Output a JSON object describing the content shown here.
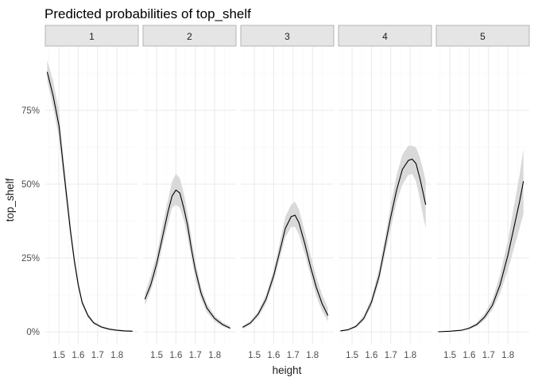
{
  "chart_data": {
    "type": "line",
    "title": "Predicted probabilities of top_shelf",
    "xlabel": "height",
    "ylabel": "top_shelf",
    "ylim": [
      0,
      0.93
    ],
    "y_ticks": [
      0,
      0.25,
      0.5,
      0.75
    ],
    "y_tick_labels": [
      "0%",
      "25%",
      "50%",
      "75%"
    ],
    "x_ticks": [
      1.5,
      1.6,
      1.7,
      1.8
    ],
    "x_tick_labels": [
      "1.5",
      "1.6",
      "1.7",
      "1.8"
    ],
    "xlim": [
      1.43,
      1.91
    ],
    "grid": true,
    "confidence_band": true,
    "panels": [
      {
        "strip": "1",
        "points": [
          {
            "x": 1.44,
            "y": 0.88,
            "lo": 0.85,
            "hi": 0.92
          },
          {
            "x": 1.47,
            "y": 0.8,
            "lo": 0.76,
            "hi": 0.85
          },
          {
            "x": 1.5,
            "y": 0.7,
            "lo": 0.66,
            "hi": 0.75
          },
          {
            "x": 1.52,
            "y": 0.58,
            "lo": 0.54,
            "hi": 0.62
          },
          {
            "x": 1.54,
            "y": 0.46,
            "lo": 0.43,
            "hi": 0.49
          },
          {
            "x": 1.56,
            "y": 0.34,
            "lo": 0.32,
            "hi": 0.37
          },
          {
            "x": 1.58,
            "y": 0.24,
            "lo": 0.22,
            "hi": 0.26
          },
          {
            "x": 1.6,
            "y": 0.16,
            "lo": 0.145,
            "hi": 0.175
          },
          {
            "x": 1.62,
            "y": 0.1,
            "lo": 0.09,
            "hi": 0.11
          },
          {
            "x": 1.65,
            "y": 0.055,
            "lo": 0.048,
            "hi": 0.062
          },
          {
            "x": 1.68,
            "y": 0.03,
            "lo": 0.025,
            "hi": 0.036
          },
          {
            "x": 1.72,
            "y": 0.016,
            "lo": 0.012,
            "hi": 0.02
          },
          {
            "x": 1.76,
            "y": 0.009,
            "lo": 0.006,
            "hi": 0.012
          },
          {
            "x": 1.8,
            "y": 0.005,
            "lo": 0.003,
            "hi": 0.008
          },
          {
            "x": 1.84,
            "y": 0.003,
            "lo": 0.001,
            "hi": 0.006
          },
          {
            "x": 1.88,
            "y": 0.002,
            "lo": 0.001,
            "hi": 0.005
          }
        ]
      },
      {
        "strip": "2",
        "points": [
          {
            "x": 1.44,
            "y": 0.11,
            "lo": 0.09,
            "hi": 0.13
          },
          {
            "x": 1.47,
            "y": 0.16,
            "lo": 0.14,
            "hi": 0.19
          },
          {
            "x": 1.5,
            "y": 0.23,
            "lo": 0.2,
            "hi": 0.26
          },
          {
            "x": 1.53,
            "y": 0.32,
            "lo": 0.29,
            "hi": 0.36
          },
          {
            "x": 1.56,
            "y": 0.41,
            "lo": 0.37,
            "hi": 0.45
          },
          {
            "x": 1.58,
            "y": 0.46,
            "lo": 0.42,
            "hi": 0.51
          },
          {
            "x": 1.6,
            "y": 0.48,
            "lo": 0.43,
            "hi": 0.535
          },
          {
            "x": 1.62,
            "y": 0.47,
            "lo": 0.42,
            "hi": 0.52
          },
          {
            "x": 1.64,
            "y": 0.42,
            "lo": 0.38,
            "hi": 0.47
          },
          {
            "x": 1.66,
            "y": 0.36,
            "lo": 0.32,
            "hi": 0.4
          },
          {
            "x": 1.68,
            "y": 0.28,
            "lo": 0.25,
            "hi": 0.32
          },
          {
            "x": 1.7,
            "y": 0.21,
            "lo": 0.18,
            "hi": 0.24
          },
          {
            "x": 1.73,
            "y": 0.13,
            "lo": 0.11,
            "hi": 0.15
          },
          {
            "x": 1.76,
            "y": 0.08,
            "lo": 0.065,
            "hi": 0.095
          },
          {
            "x": 1.8,
            "y": 0.045,
            "lo": 0.035,
            "hi": 0.055
          },
          {
            "x": 1.84,
            "y": 0.025,
            "lo": 0.018,
            "hi": 0.033
          },
          {
            "x": 1.88,
            "y": 0.012,
            "lo": 0.008,
            "hi": 0.018
          }
        ]
      },
      {
        "strip": "3",
        "points": [
          {
            "x": 1.44,
            "y": 0.015,
            "lo": 0.01,
            "hi": 0.02
          },
          {
            "x": 1.48,
            "y": 0.03,
            "lo": 0.024,
            "hi": 0.037
          },
          {
            "x": 1.52,
            "y": 0.06,
            "lo": 0.05,
            "hi": 0.07
          },
          {
            "x": 1.56,
            "y": 0.11,
            "lo": 0.095,
            "hi": 0.125
          },
          {
            "x": 1.6,
            "y": 0.19,
            "lo": 0.17,
            "hi": 0.21
          },
          {
            "x": 1.63,
            "y": 0.27,
            "lo": 0.245,
            "hi": 0.3
          },
          {
            "x": 1.66,
            "y": 0.35,
            "lo": 0.32,
            "hi": 0.39
          },
          {
            "x": 1.69,
            "y": 0.39,
            "lo": 0.355,
            "hi": 0.43
          },
          {
            "x": 1.71,
            "y": 0.395,
            "lo": 0.355,
            "hi": 0.44
          },
          {
            "x": 1.73,
            "y": 0.37,
            "lo": 0.33,
            "hi": 0.415
          },
          {
            "x": 1.76,
            "y": 0.3,
            "lo": 0.265,
            "hi": 0.34
          },
          {
            "x": 1.79,
            "y": 0.22,
            "lo": 0.19,
            "hi": 0.26
          },
          {
            "x": 1.82,
            "y": 0.15,
            "lo": 0.12,
            "hi": 0.185
          },
          {
            "x": 1.85,
            "y": 0.095,
            "lo": 0.07,
            "hi": 0.125
          },
          {
            "x": 1.88,
            "y": 0.055,
            "lo": 0.035,
            "hi": 0.08
          }
        ]
      },
      {
        "strip": "4",
        "points": [
          {
            "x": 1.44,
            "y": 0.003,
            "lo": 0.002,
            "hi": 0.005
          },
          {
            "x": 1.48,
            "y": 0.007,
            "lo": 0.005,
            "hi": 0.01
          },
          {
            "x": 1.52,
            "y": 0.018,
            "lo": 0.014,
            "hi": 0.023
          },
          {
            "x": 1.56,
            "y": 0.045,
            "lo": 0.037,
            "hi": 0.055
          },
          {
            "x": 1.6,
            "y": 0.1,
            "lo": 0.085,
            "hi": 0.115
          },
          {
            "x": 1.64,
            "y": 0.19,
            "lo": 0.17,
            "hi": 0.215
          },
          {
            "x": 1.67,
            "y": 0.29,
            "lo": 0.26,
            "hi": 0.32
          },
          {
            "x": 1.7,
            "y": 0.39,
            "lo": 0.35,
            "hi": 0.43
          },
          {
            "x": 1.73,
            "y": 0.48,
            "lo": 0.44,
            "hi": 0.53
          },
          {
            "x": 1.76,
            "y": 0.55,
            "lo": 0.5,
            "hi": 0.6
          },
          {
            "x": 1.79,
            "y": 0.58,
            "lo": 0.53,
            "hi": 0.63
          },
          {
            "x": 1.81,
            "y": 0.585,
            "lo": 0.535,
            "hi": 0.63
          },
          {
            "x": 1.83,
            "y": 0.57,
            "lo": 0.51,
            "hi": 0.625
          },
          {
            "x": 1.85,
            "y": 0.52,
            "lo": 0.45,
            "hi": 0.59
          },
          {
            "x": 1.87,
            "y": 0.46,
            "lo": 0.38,
            "hi": 0.54
          },
          {
            "x": 1.88,
            "y": 0.43,
            "lo": 0.35,
            "hi": 0.51
          }
        ]
      },
      {
        "strip": "5",
        "points": [
          {
            "x": 1.44,
            "y": 0.0,
            "lo": 0.0,
            "hi": 0.0
          },
          {
            "x": 1.5,
            "y": 0.002,
            "lo": 0.001,
            "hi": 0.003
          },
          {
            "x": 1.56,
            "y": 0.005,
            "lo": 0.003,
            "hi": 0.007
          },
          {
            "x": 1.6,
            "y": 0.012,
            "lo": 0.009,
            "hi": 0.016
          },
          {
            "x": 1.64,
            "y": 0.025,
            "lo": 0.019,
            "hi": 0.032
          },
          {
            "x": 1.68,
            "y": 0.05,
            "lo": 0.04,
            "hi": 0.062
          },
          {
            "x": 1.72,
            "y": 0.09,
            "lo": 0.075,
            "hi": 0.11
          },
          {
            "x": 1.76,
            "y": 0.16,
            "lo": 0.13,
            "hi": 0.195
          },
          {
            "x": 1.8,
            "y": 0.26,
            "lo": 0.21,
            "hi": 0.31
          },
          {
            "x": 1.83,
            "y": 0.35,
            "lo": 0.28,
            "hi": 0.42
          },
          {
            "x": 1.86,
            "y": 0.44,
            "lo": 0.35,
            "hi": 0.53
          },
          {
            "x": 1.88,
            "y": 0.51,
            "lo": 0.4,
            "hi": 0.62
          }
        ]
      }
    ]
  },
  "colors": {
    "line": "#000000",
    "band": "#d9d9d9",
    "strip_fill": "#e5e5e5",
    "strip_border": "#b3b3b3",
    "grid_major": "#ebebeb",
    "grid_minor": "#f5f5f5"
  }
}
